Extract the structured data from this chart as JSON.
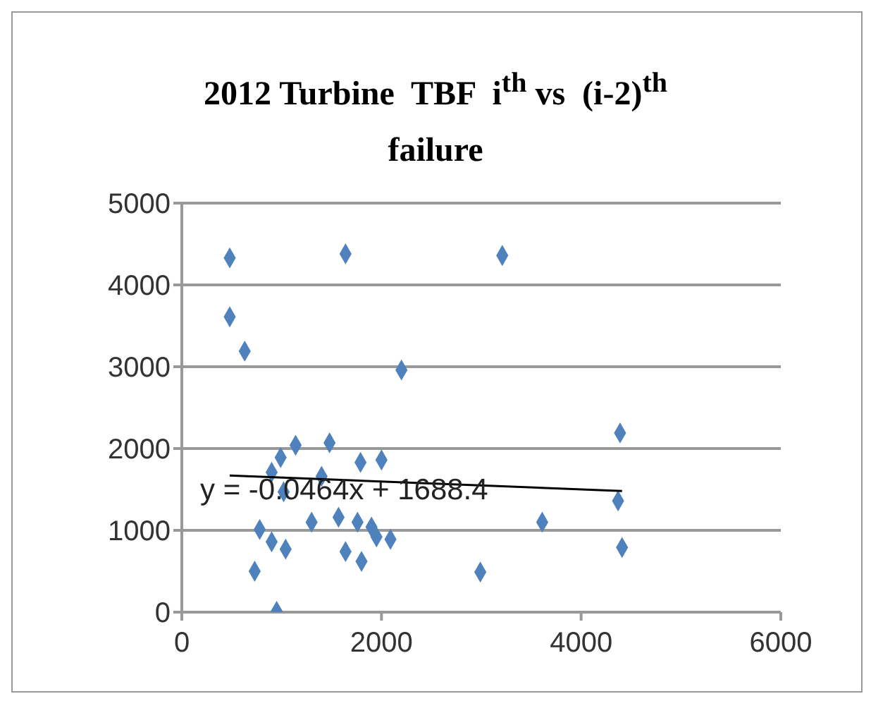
{
  "chart_data": {
    "type": "scatter",
    "title": "2012 Turbine  TBF  i$^{th}$ vs  (i-2)$^{th}$ failure",
    "grid": "y",
    "legend": false,
    "xlim": [
      0,
      6000
    ],
    "xticks": [
      0,
      2000,
      4000,
      6000
    ],
    "ylim": [
      0,
      5000
    ],
    "yticks": [
      0,
      1000,
      2000,
      3000,
      4000,
      5000
    ],
    "annotations": [
      "y = -0.0464x + 1688.4"
    ],
    "series": [
      {
        "color": "#4f81bd",
        "marker": "diamond",
        "x": [
          480,
          1640,
          480,
          630,
          2200,
          1140,
          1480,
          990,
          900,
          1790,
          2000,
          1400,
          1020,
          780,
          900,
          1040,
          730,
          950,
          1300,
          1570,
          1760,
          1640,
          1800,
          1950,
          2090,
          1900,
          3210,
          4390,
          4370,
          3610,
          4410,
          2990
        ],
        "values": [
          4330,
          4380,
          3610,
          3190,
          2960,
          2040,
          2070,
          1890,
          1710,
          1830,
          1860,
          1660,
          1470,
          1010,
          860,
          770,
          500,
          10,
          1100,
          1160,
          1100,
          740,
          620,
          920,
          890,
          1040,
          4360,
          2190,
          1360,
          1100,
          790,
          490
        ]
      },
      {
        "type": "line",
        "color": "#000000",
        "marker": "none",
        "x": [
          480,
          4410
        ],
        "values": [
          1670,
          1480
        ]
      }
    ]
  }
}
